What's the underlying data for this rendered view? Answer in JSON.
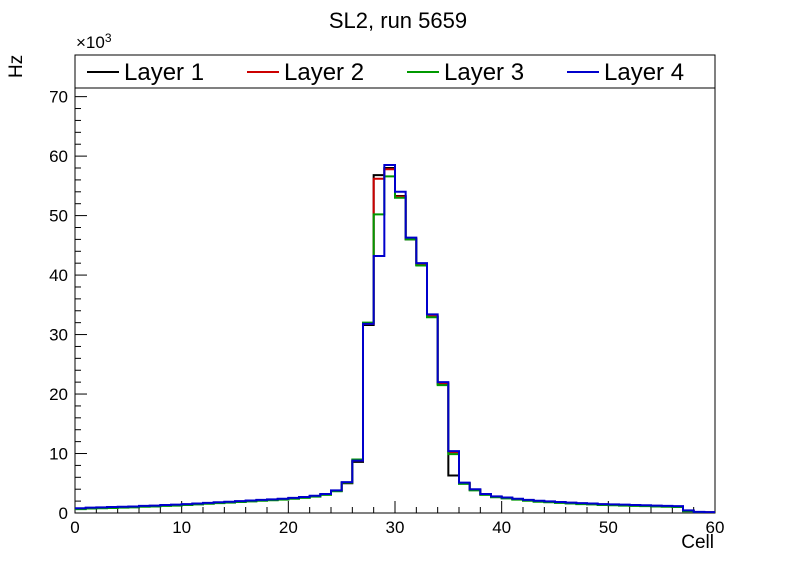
{
  "title": "SL2, run 5659",
  "axes": {
    "y_label": "Hz",
    "x_label": "Cell",
    "y_multiplier_base": "×10",
    "y_multiplier_exp": "3"
  },
  "legend": {
    "position": "top",
    "items": [
      {
        "label": "Layer 1",
        "color": "#000000"
      },
      {
        "label": "Layer 2",
        "color": "#cc0000"
      },
      {
        "label": "Layer 3",
        "color": "#009900"
      },
      {
        "label": "Layer 4",
        "color": "#0000cc"
      }
    ]
  },
  "chart_data": {
    "type": "line",
    "style": "step-histogram",
    "title": "SL2, run 5659",
    "xlabel": "Cell",
    "ylabel": "Hz",
    "y_unit_multiplier": 1000,
    "xlim": [
      0,
      60
    ],
    "ylim": [
      0,
      77
    ],
    "bin_width": 1,
    "x_ticks_major": [
      0,
      10,
      20,
      30,
      40,
      50,
      60
    ],
    "x_minor_step": 2,
    "y_ticks_major": [
      0,
      10,
      20,
      30,
      40,
      50,
      60,
      70
    ],
    "y_minor_step": 2,
    "grid": false,
    "legend_position": "top-inside",
    "x_bins_start": 0,
    "series": [
      {
        "name": "Layer 1",
        "color": "#000000",
        "values": [
          0.7,
          0.8,
          0.85,
          0.9,
          0.95,
          1.0,
          1.1,
          1.15,
          1.25,
          1.3,
          1.4,
          1.5,
          1.6,
          1.7,
          1.8,
          1.9,
          2.0,
          2.1,
          2.2,
          2.3,
          2.45,
          2.6,
          2.8,
          3.1,
          3.7,
          5.0,
          8.6,
          31.6,
          56.8,
          58.0,
          53.3,
          46.0,
          41.7,
          33.0,
          21.7,
          6.3,
          5.0,
          3.9,
          3.1,
          2.7,
          2.5,
          2.3,
          2.1,
          1.95,
          1.85,
          1.75,
          1.65,
          1.55,
          1.5,
          1.4,
          1.35,
          1.3,
          1.25,
          1.2,
          1.15,
          1.1,
          1.05,
          0.35,
          0.12,
          0.1
        ]
      },
      {
        "name": "Layer 2",
        "color": "#cc0000",
        "values": [
          0.75,
          0.85,
          0.9,
          0.95,
          1.0,
          1.05,
          1.15,
          1.2,
          1.3,
          1.35,
          1.45,
          1.55,
          1.65,
          1.75,
          1.85,
          1.95,
          2.05,
          2.15,
          2.25,
          2.35,
          2.5,
          2.65,
          2.85,
          3.15,
          3.75,
          5.1,
          8.8,
          31.8,
          56.2,
          57.8,
          53.2,
          46.1,
          41.8,
          33.1,
          21.8,
          10.2,
          5.0,
          3.9,
          3.15,
          2.75,
          2.55,
          2.35,
          2.15,
          2.0,
          1.9,
          1.8,
          1.7,
          1.6,
          1.55,
          1.45,
          1.4,
          1.35,
          1.3,
          1.25,
          1.2,
          1.15,
          1.1,
          0.4,
          0.15,
          0.12
        ]
      },
      {
        "name": "Layer 3",
        "color": "#009900",
        "values": [
          0.65,
          0.75,
          0.8,
          0.85,
          0.9,
          0.95,
          1.05,
          1.1,
          1.2,
          1.25,
          1.35,
          1.45,
          1.55,
          1.65,
          1.75,
          1.85,
          1.95,
          2.05,
          2.15,
          2.25,
          2.4,
          2.55,
          2.75,
          3.05,
          3.65,
          5.1,
          9.0,
          32.0,
          50.2,
          56.6,
          53.0,
          46.0,
          41.6,
          32.9,
          21.5,
          9.9,
          4.9,
          3.8,
          3.05,
          2.65,
          2.45,
          2.25,
          2.05,
          1.9,
          1.8,
          1.7,
          1.6,
          1.5,
          1.45,
          1.35,
          1.3,
          1.25,
          1.2,
          1.15,
          1.1,
          1.05,
          1.0,
          0.3,
          0.1,
          0.08
        ]
      },
      {
        "name": "Layer 4",
        "color": "#0000cc",
        "values": [
          0.8,
          0.9,
          0.95,
          1.0,
          1.05,
          1.1,
          1.2,
          1.25,
          1.35,
          1.4,
          1.5,
          1.6,
          1.7,
          1.8,
          1.9,
          2.0,
          2.1,
          2.2,
          2.3,
          2.4,
          2.55,
          2.7,
          2.9,
          3.2,
          3.8,
          5.2,
          8.8,
          31.8,
          43.2,
          58.5,
          54.0,
          46.3,
          42.0,
          33.4,
          22.0,
          10.4,
          5.1,
          4.0,
          3.2,
          2.8,
          2.6,
          2.4,
          2.2,
          2.05,
          1.95,
          1.85,
          1.75,
          1.65,
          1.6,
          1.5,
          1.45,
          1.4,
          1.35,
          1.3,
          1.25,
          1.2,
          1.15,
          0.45,
          0.18,
          0.15
        ]
      }
    ]
  }
}
